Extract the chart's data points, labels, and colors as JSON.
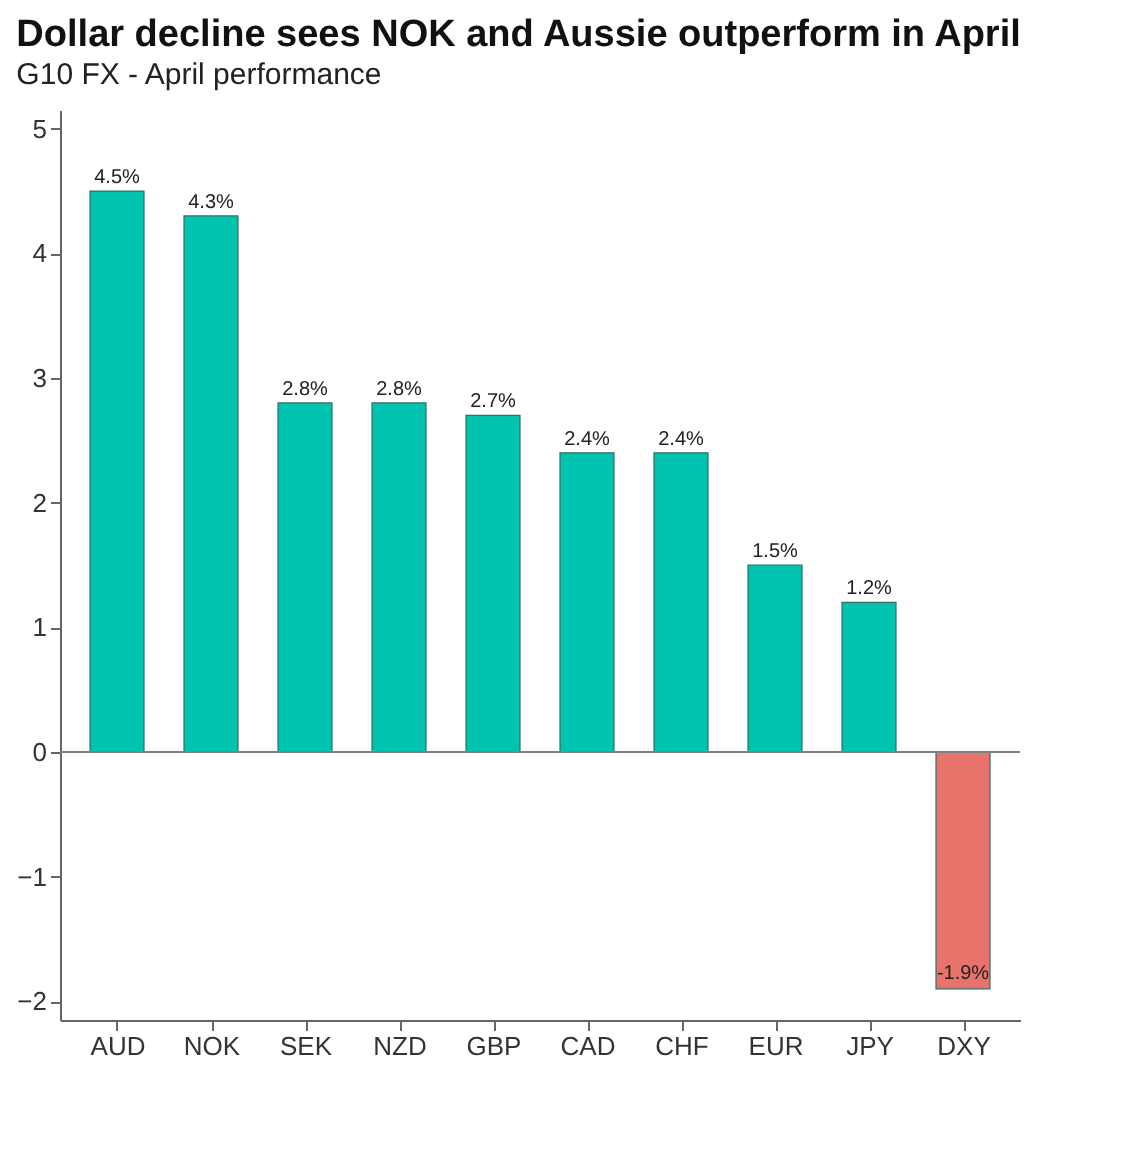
{
  "chart_data": {
    "type": "bar",
    "title": "Dollar decline sees NOK and Aussie outperform in April",
    "subtitle": "G10 FX - April performance",
    "categories": [
      "AUD",
      "NOK",
      "SEK",
      "NZD",
      "GBP",
      "CAD",
      "CHF",
      "EUR",
      "JPY",
      "DXY"
    ],
    "values": [
      4.5,
      4.3,
      2.8,
      2.8,
      2.7,
      2.4,
      2.4,
      1.5,
      1.2,
      -1.9
    ],
    "value_labels": [
      "4.5%",
      "4.3%",
      "2.8%",
      "2.8%",
      "2.7%",
      "2.4%",
      "2.4%",
      "1.5%",
      "1.2%",
      "-1.9%"
    ],
    "colors": [
      "#00c4b0",
      "#00c4b0",
      "#00c4b0",
      "#00c4b0",
      "#00c4b0",
      "#00c4b0",
      "#00c4b0",
      "#00c4b0",
      "#00c4b0",
      "#e8736a"
    ],
    "ylim": [
      -2.15,
      5.15
    ],
    "yticks": [
      -2,
      -1,
      0,
      1,
      2,
      3,
      4,
      5
    ],
    "ref_lines": [
      {
        "axis": "y",
        "value": 0,
        "color": "#808080"
      }
    ],
    "grid": false
  }
}
